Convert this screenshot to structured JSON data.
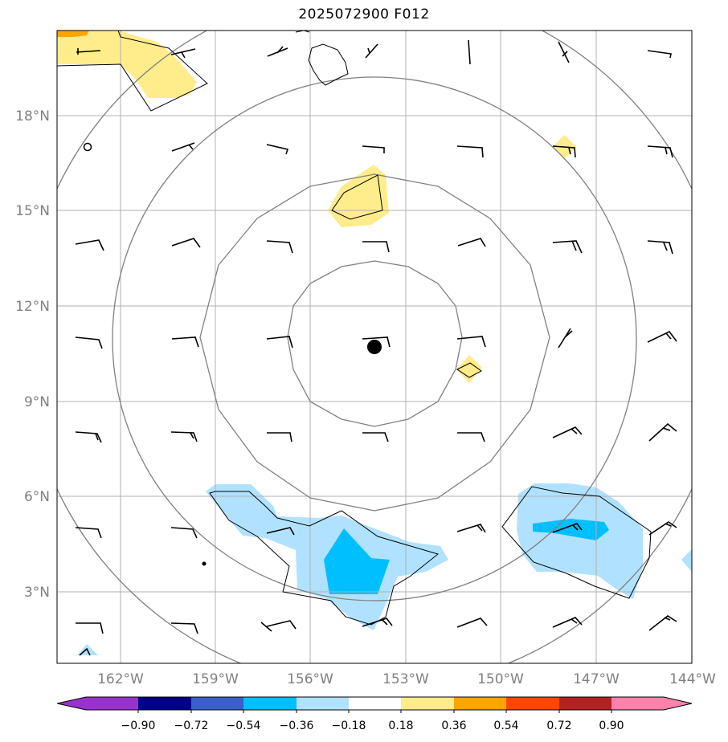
{
  "title": "2025072900 F012",
  "map": {
    "lat_range": [
      0.7,
      19.9
    ],
    "lon_range": [
      -164.0,
      -144.0
    ],
    "lat_ticks": [
      {
        "value": 18,
        "label": "18°N"
      },
      {
        "value": 15,
        "label": "15°N"
      },
      {
        "value": 12,
        "label": "12°N"
      },
      {
        "value": 9,
        "label": "9°N"
      },
      {
        "value": 6,
        "label": "6°N"
      },
      {
        "value": 3,
        "label": "3°N"
      }
    ],
    "lon_ticks": [
      {
        "value": -162,
        "label": "162°W"
      },
      {
        "value": -159,
        "label": "159°W"
      },
      {
        "value": -156,
        "label": "156°W"
      },
      {
        "value": -153,
        "label": "153°W"
      },
      {
        "value": -150,
        "label": "150°W"
      },
      {
        "value": -147,
        "label": "147°W"
      },
      {
        "value": -144,
        "label": "144°W"
      }
    ],
    "center": {
      "lon": -154.0,
      "lat": 10.7
    },
    "colors": {
      "frame": "#000000",
      "grid": "#b0b0b0",
      "range_rings": "#808080",
      "coast": "#000000",
      "barbs": "#000000"
    }
  },
  "colorbar": {
    "colors": [
      "#9932cc",
      "#00008b",
      "#3a5fcd",
      "#00bfff",
      "#b0e2ff",
      "#ffffff",
      "#ffec8b",
      "#ffa500",
      "#ff4500",
      "#b22222",
      "#ff82ab"
    ],
    "labels": [
      "−0.90",
      "−0.72",
      "−0.54",
      "−0.36",
      "−0.18",
      "0.18",
      "0.36",
      "0.54",
      "0.72",
      "0.90"
    ]
  }
}
